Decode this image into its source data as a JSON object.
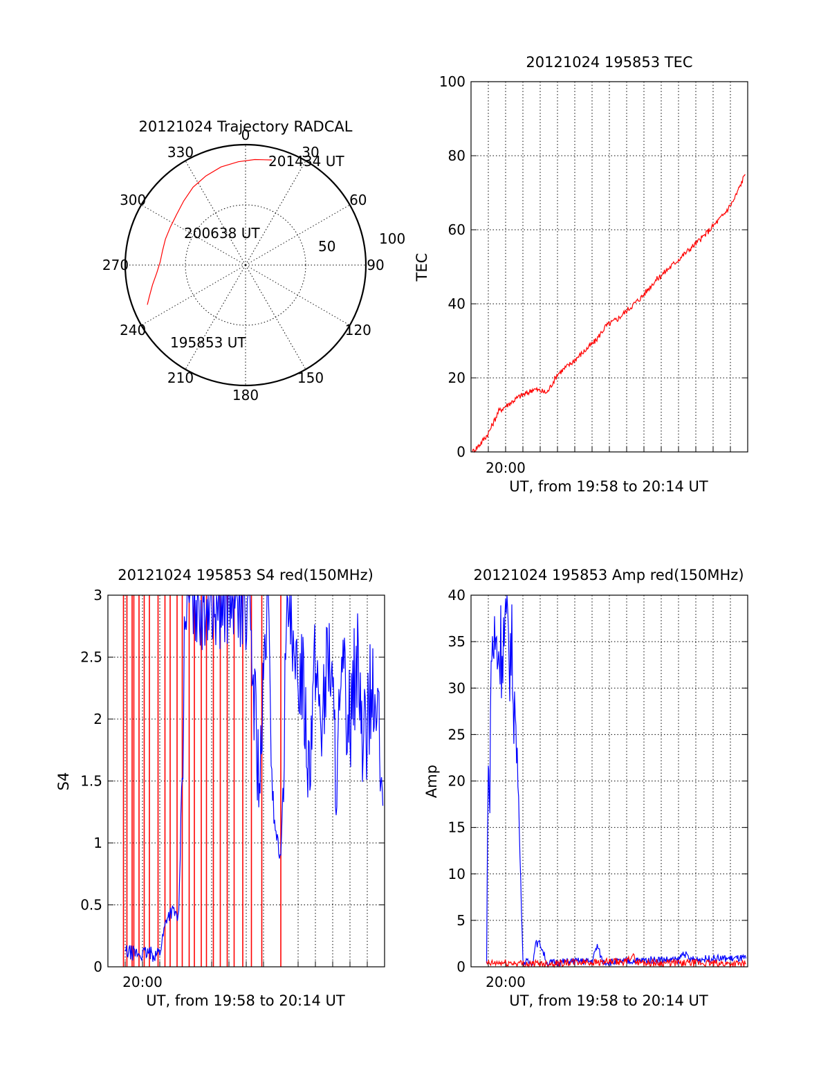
{
  "colors": {
    "red": "#ff0000",
    "blue": "#0000ff",
    "axis": "#000000",
    "background": "#ffffff"
  },
  "chart_data": [
    {
      "type": "polar",
      "title": "20121024 Trajectory RADCAL",
      "angle_labels": [
        "0",
        "30",
        "60",
        "90",
        "120",
        "150",
        "180",
        "210",
        "240",
        "270",
        "300",
        "330"
      ],
      "radial_labels": [
        "50",
        "100"
      ],
      "rlim": [
        0,
        100
      ],
      "grid": true,
      "track": {
        "color": "#ff0000",
        "points": [
          {
            "az": 248,
            "r": 88
          },
          {
            "az": 252,
            "r": 84
          },
          {
            "az": 258,
            "r": 79
          },
          {
            "az": 265,
            "r": 74
          },
          {
            "az": 272,
            "r": 71
          },
          {
            "az": 280,
            "r": 70
          },
          {
            "az": 288,
            "r": 70
          },
          {
            "az": 297,
            "r": 70
          },
          {
            "az": 306,
            "r": 71
          },
          {
            "az": 316,
            "r": 74
          },
          {
            "az": 326,
            "r": 78
          },
          {
            "az": 336,
            "r": 81
          },
          {
            "az": 346,
            "r": 84
          },
          {
            "az": 356,
            "r": 86
          },
          {
            "az": 5,
            "r": 88
          },
          {
            "az": 14,
            "r": 90
          }
        ]
      },
      "annotations": [
        "201434 UT",
        "200638 UT",
        "195853 UT"
      ]
    },
    {
      "type": "line",
      "title": "20121024 195853 TEC",
      "xlabel": "UT, from 19:58 to 20:14 UT",
      "ylabel": "TEC",
      "x_tick_label": "20:00",
      "ylim": [
        0,
        100
      ],
      "yticks": [
        "0",
        "20",
        "40",
        "60",
        "80",
        "100"
      ],
      "grid": true,
      "series": [
        {
          "color": "#ff0000",
          "x": [
            0.08,
            0.5,
            1.0,
            1.6,
            2.2,
            2.8,
            3.3,
            3.6,
            4.4,
            5.0,
            5.8,
            6.5,
            7.2,
            7.8,
            8.5,
            9.2,
            9.9,
            10.6,
            11.3,
            12.0,
            12.7,
            13.4,
            14.0,
            14.6,
            15.2,
            15.85
          ],
          "y": [
            0,
            2,
            5,
            11,
            13,
            15,
            16,
            17,
            16,
            21,
            24,
            27,
            30,
            34,
            36,
            39,
            42,
            46,
            49,
            52,
            55,
            58,
            61,
            64,
            68,
            75
          ]
        }
      ]
    },
    {
      "type": "line",
      "title": "20121024 195853 S4 red(150MHz)",
      "xlabel": "UT, from 19:58 to 20:14 UT",
      "ylabel": "S4",
      "x_tick_label": "20:00",
      "ylim": [
        0,
        3
      ],
      "yticks": [
        "0",
        "0.5",
        "1",
        "1.5",
        "2",
        "2.5",
        "3"
      ],
      "grid": true,
      "series": [
        {
          "color": "#ff0000",
          "x": [
            0.9,
            1.1,
            1.4,
            1.5,
            1.8,
            2.1,
            2.4,
            2.9,
            3.3,
            3.6,
            4.0,
            4.3,
            4.7,
            5.0,
            5.4,
            5.7,
            6.1,
            6.5,
            6.9,
            7.3,
            7.8,
            8.3,
            8.9,
            10.0
          ],
          "y_from": 0,
          "y_to": 3
        },
        {
          "color": "#0000ff",
          "x": [
            1.0,
            1.5,
            2.0,
            2.3,
            2.6,
            3.0,
            3.4,
            3.7,
            4.1,
            4.5,
            5.3,
            5.8,
            6.6,
            7.5,
            8.1,
            8.8,
            9.2,
            9.6,
            10.0,
            10.4,
            10.8,
            11.2,
            11.6,
            12.0,
            12.4,
            12.8,
            13.2,
            13.6,
            14.0,
            14.4,
            14.8,
            15.2,
            15.6,
            15.9
          ],
          "y": [
            0.12,
            0.11,
            0.1,
            0.11,
            0.1,
            0.12,
            0.4,
            0.45,
            0.4,
            3,
            3,
            3,
            3,
            3,
            3,
            1.4,
            3,
            1.2,
            0.85,
            3,
            2.2,
            2.5,
            1.7,
            2.4,
            2.0,
            2.6,
            1.6,
            2.3,
            2.0,
            2.5,
            1.8,
            2.2,
            2.0,
            1.3
          ]
        }
      ]
    },
    {
      "type": "line",
      "title": "20121024 195853 Amp red(150MHz)",
      "xlabel": "UT, from 19:58 to 20:14 UT",
      "ylabel": "Amp",
      "x_tick_label": "20:00",
      "ylim": [
        0,
        40
      ],
      "yticks": [
        "0",
        "5",
        "10",
        "15",
        "20",
        "25",
        "30",
        "35",
        "40"
      ],
      "grid": true,
      "series": [
        {
          "color": "#0000ff",
          "x": [
            0.9,
            1.0,
            1.05,
            1.2,
            1.6,
            2.0,
            2.4,
            2.75,
            3.0,
            3.6,
            3.7,
            4.0,
            4.4,
            5.0,
            6.0,
            7.0,
            7.3,
            7.6,
            8.0,
            9.0,
            10.0,
            11.0,
            12.0,
            12.3,
            12.6,
            13.0,
            14.0,
            15.0,
            15.9
          ],
          "y": [
            0.3,
            27,
            18,
            35,
            34,
            36,
            33,
            18,
            0.5,
            0.5,
            2.5,
            2.5,
            0.4,
            0.5,
            0.6,
            0.6,
            2.3,
            0.6,
            0.5,
            0.6,
            0.7,
            0.8,
            0.7,
            1.6,
            0.8,
            0.8,
            0.9,
            0.9,
            0.9
          ]
        },
        {
          "color": "#ff0000",
          "x": [
            0.9,
            1.5,
            2.5,
            3.5,
            5.0,
            6.5,
            8.0,
            9.0,
            9.3,
            9.6,
            11.0,
            13.0,
            15.9
          ],
          "y": [
            0.3,
            0.4,
            0.4,
            0.3,
            0.4,
            0.5,
            0.5,
            0.5,
            1.3,
            0.5,
            0.4,
            0.4,
            0.3
          ]
        }
      ]
    }
  ]
}
